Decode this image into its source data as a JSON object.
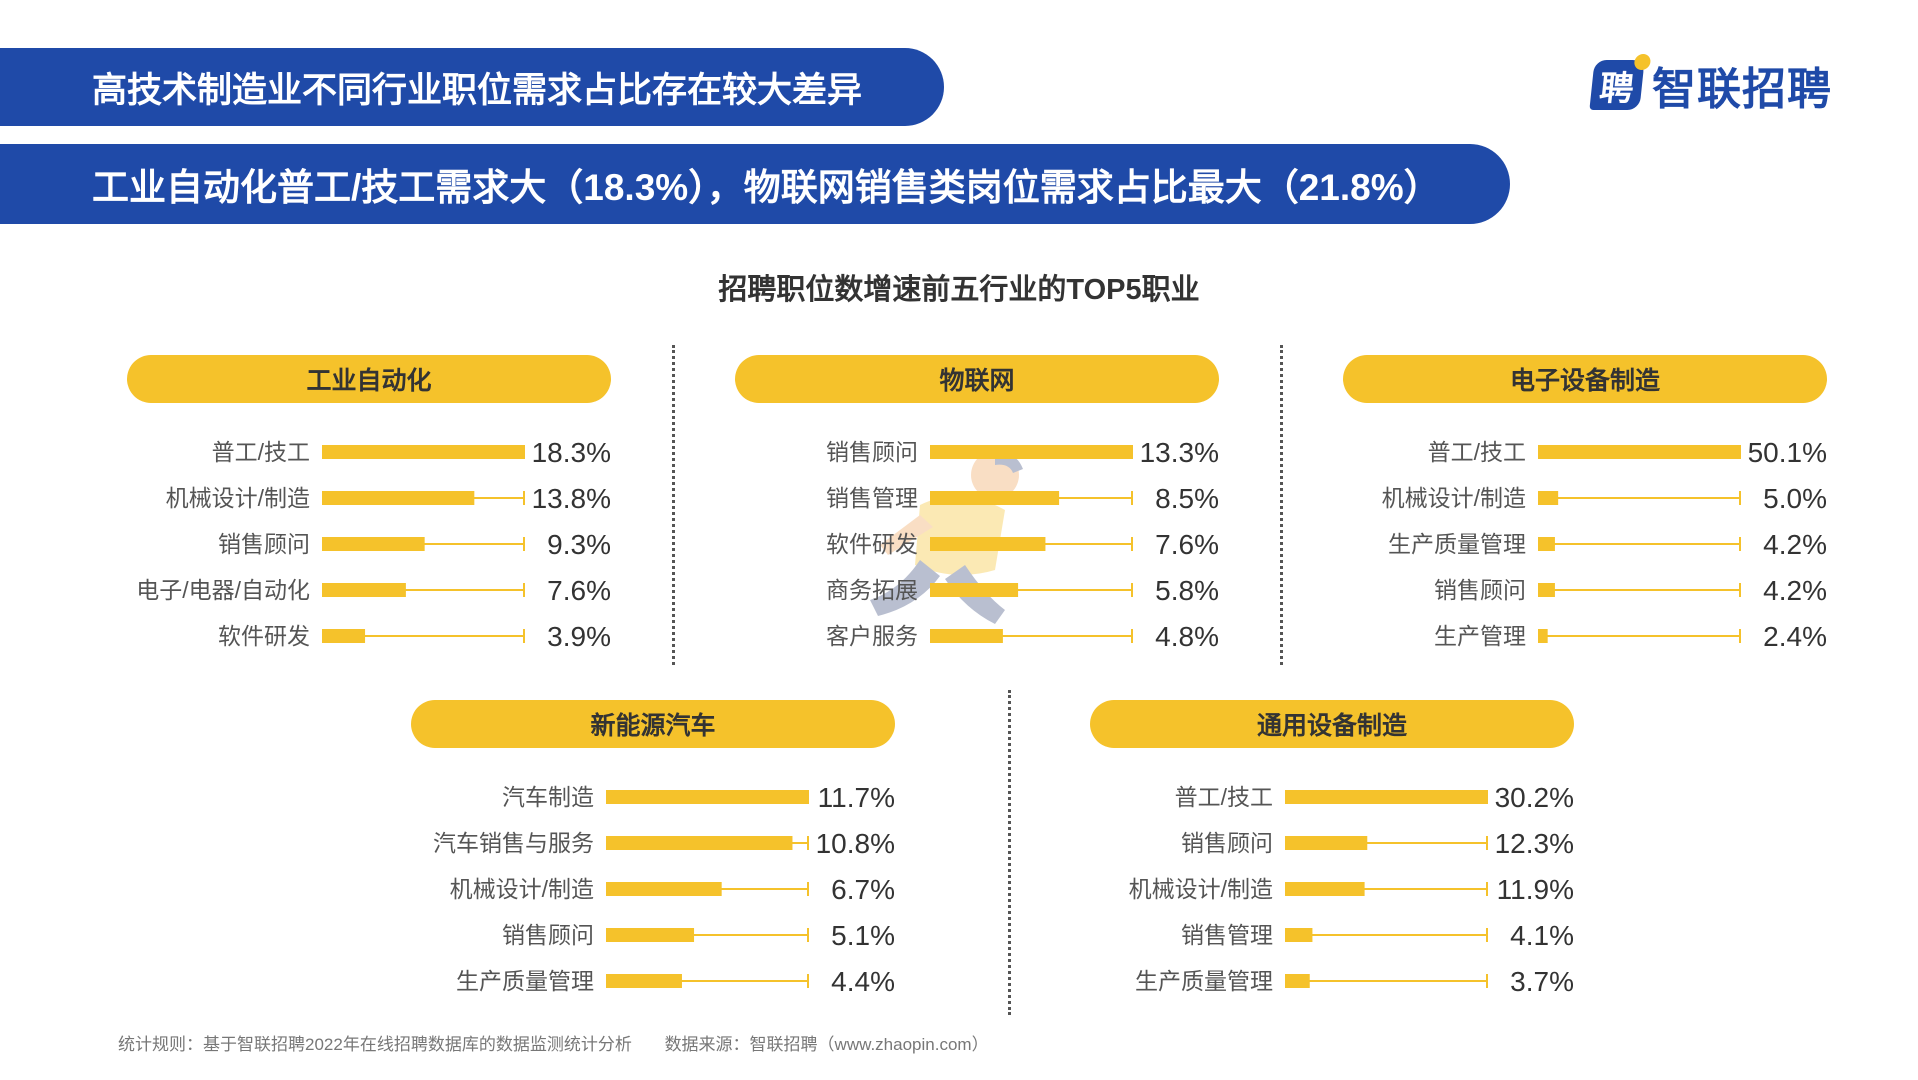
{
  "header": {
    "banner_line1": "高技术制造业不同行业职位需求占比存在较大差异",
    "banner_line2": "工业自动化普工/技工需求大（18.3%），物联网销售类岗位需求占比最大（21.8%）",
    "logo_text": "智联招聘",
    "logo_glyph": "聘",
    "colors": {
      "banner": "#1f4aa8",
      "pill": "#f5c22b",
      "bar": "#f5c22b"
    }
  },
  "chart_data": [
    {
      "type": "bar",
      "orientation": "horizontal",
      "title": "工业自动化",
      "categories": [
        "普工/技工",
        "机械设计/制造",
        "销售顾问",
        "电子/电器/自动化",
        "软件研发"
      ],
      "values": [
        18.3,
        13.8,
        9.3,
        7.6,
        3.9
      ],
      "value_labels": [
        "18.3%",
        "13.8%",
        "9.3%",
        "7.6%",
        "3.9%"
      ],
      "unit": "%"
    },
    {
      "type": "bar",
      "orientation": "horizontal",
      "title": "物联网",
      "categories": [
        "销售顾问",
        "销售管理",
        "软件研发",
        "商务拓展",
        "客户服务"
      ],
      "values": [
        13.3,
        8.5,
        7.6,
        5.8,
        4.8
      ],
      "value_labels": [
        "13.3%",
        "8.5%",
        "7.6%",
        "5.8%",
        "4.8%"
      ],
      "unit": "%"
    },
    {
      "type": "bar",
      "orientation": "horizontal",
      "title": "电子设备制造",
      "categories": [
        "普工/技工",
        "机械设计/制造",
        "生产质量管理",
        "销售顾问",
        "生产管理"
      ],
      "values": [
        50.1,
        5.0,
        4.2,
        4.2,
        2.4
      ],
      "value_labels": [
        "50.1%",
        "5.0%",
        "4.2%",
        "4.2%",
        "2.4%"
      ],
      "unit": "%"
    },
    {
      "type": "bar",
      "orientation": "horizontal",
      "title": "新能源汽车",
      "categories": [
        "汽车制造",
        "汽车销售与服务",
        "机械设计/制造",
        "销售顾问",
        "生产质量管理"
      ],
      "values": [
        11.7,
        10.8,
        6.7,
        5.1,
        4.4
      ],
      "value_labels": [
        "11.7%",
        "10.8%",
        "6.7%",
        "5.1%",
        "4.4%"
      ],
      "unit": "%"
    },
    {
      "type": "bar",
      "orientation": "horizontal",
      "title": "通用设备制造",
      "categories": [
        "普工/技工",
        "销售顾问",
        "机械设计/制造",
        "销售管理",
        "生产质量管理"
      ],
      "values": [
        30.2,
        12.3,
        11.9,
        4.1,
        3.7
      ],
      "value_labels": [
        "30.2%",
        "12.3%",
        "11.9%",
        "4.1%",
        "3.7%"
      ],
      "unit": "%"
    }
  ],
  "figure_title": "招聘职位数增速前五行业的TOP5职业",
  "footnote": {
    "rule": "统计规则：基于智联招聘2022年在线招聘数据库的数据监测统计分析",
    "source": "数据来源：智联招聘（www.zhaopin.com）"
  }
}
